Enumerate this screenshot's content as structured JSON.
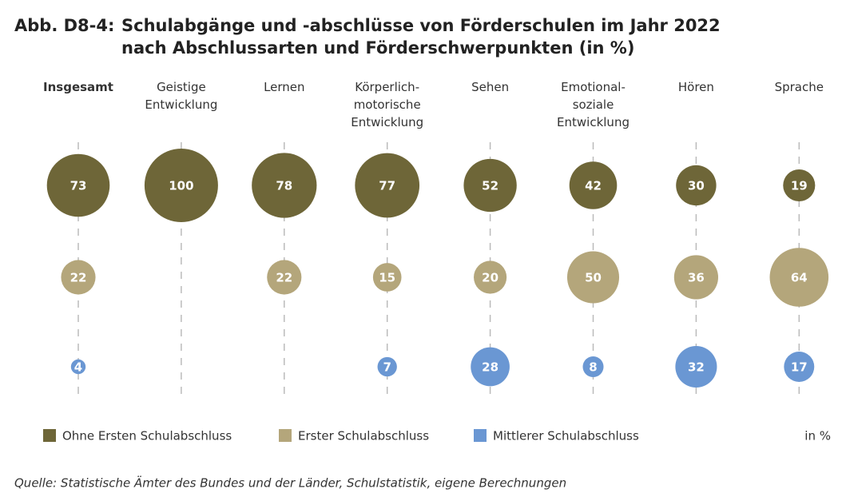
{
  "chart_data": {
    "type": "bubble",
    "figure_label": "Abb. D8-4:",
    "title": [
      "Schulabgänge und -abschlüsse von Förderschulen im Jahr 2022",
      "nach Abschlussarten und Förderschwerpunkten (in %)"
    ],
    "categories": [
      "Insgesamt",
      "Geistige Entwicklung",
      "Lernen",
      "Körperlich-motorische Entwicklung",
      "Sehen",
      "Emotional-soziale Entwicklung",
      "Hören",
      "Sprache"
    ],
    "series": [
      {
        "name": "Ohne Ersten Schulabschluss",
        "color": "#6e6638",
        "values": [
          73,
          100,
          78,
          77,
          52,
          42,
          30,
          19
        ]
      },
      {
        "name": "Erster Schulabschluss",
        "color": "#b4a67b",
        "values": [
          22,
          null,
          22,
          15,
          20,
          50,
          36,
          64
        ]
      },
      {
        "name": "Mittlerer Schulabschluss",
        "color": "#6a97d3",
        "values": [
          4,
          null,
          null,
          7,
          28,
          8,
          32,
          17
        ]
      }
    ],
    "unit": "in %",
    "source": "Quelle: Statistische Ämter des Bundes und der Länder, Schulstatistik, eigene Berechnungen"
  }
}
